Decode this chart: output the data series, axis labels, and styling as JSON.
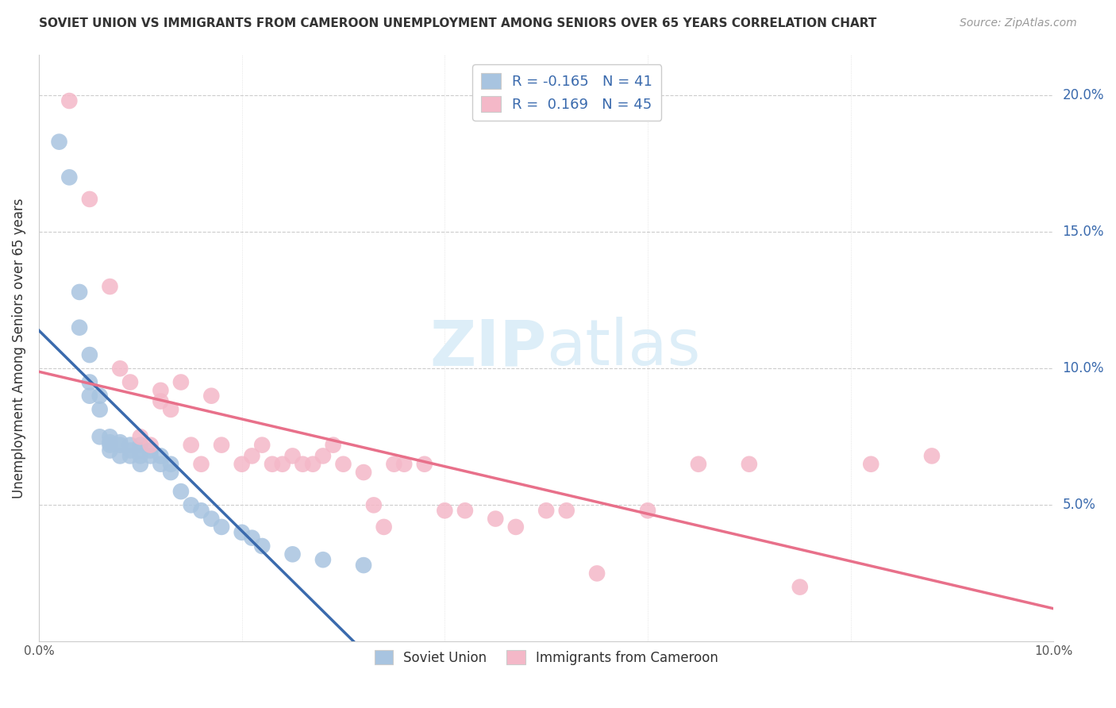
{
  "title": "SOVIET UNION VS IMMIGRANTS FROM CAMEROON UNEMPLOYMENT AMONG SENIORS OVER 65 YEARS CORRELATION CHART",
  "source": "Source: ZipAtlas.com",
  "ylabel": "Unemployment Among Seniors over 65 years",
  "legend_label1": "Soviet Union",
  "legend_label2": "Immigrants from Cameroon",
  "R1": "-0.165",
  "N1": "41",
  "R2": "0.169",
  "N2": "45",
  "color_soviet": "#a8c4e0",
  "color_cameroon": "#f4b8c8",
  "color_line_soviet": "#3a6aad",
  "color_line_cameroon": "#e8708a",
  "color_dashed": "#c0c8d8",
  "watermark_color": "#ddeef8",
  "xlim": [
    0.0,
    0.1
  ],
  "ylim": [
    0.0,
    0.215
  ],
  "soviet_x": [
    0.002,
    0.003,
    0.004,
    0.004,
    0.005,
    0.005,
    0.005,
    0.006,
    0.006,
    0.006,
    0.007,
    0.007,
    0.007,
    0.007,
    0.008,
    0.008,
    0.008,
    0.009,
    0.009,
    0.009,
    0.01,
    0.01,
    0.01,
    0.01,
    0.011,
    0.011,
    0.012,
    0.012,
    0.013,
    0.013,
    0.014,
    0.015,
    0.016,
    0.017,
    0.018,
    0.02,
    0.021,
    0.022,
    0.025,
    0.028,
    0.032
  ],
  "soviet_y": [
    0.183,
    0.17,
    0.128,
    0.115,
    0.105,
    0.095,
    0.09,
    0.09,
    0.085,
    0.075,
    0.075,
    0.073,
    0.072,
    0.07,
    0.073,
    0.072,
    0.068,
    0.072,
    0.07,
    0.068,
    0.072,
    0.07,
    0.068,
    0.065,
    0.07,
    0.068,
    0.068,
    0.065,
    0.065,
    0.062,
    0.055,
    0.05,
    0.048,
    0.045,
    0.042,
    0.04,
    0.038,
    0.035,
    0.032,
    0.03,
    0.028
  ],
  "cameroon_x": [
    0.003,
    0.005,
    0.007,
    0.008,
    0.009,
    0.01,
    0.011,
    0.012,
    0.012,
    0.013,
    0.014,
    0.015,
    0.016,
    0.017,
    0.018,
    0.02,
    0.021,
    0.022,
    0.023,
    0.024,
    0.025,
    0.026,
    0.027,
    0.028,
    0.029,
    0.03,
    0.032,
    0.033,
    0.034,
    0.035,
    0.036,
    0.038,
    0.04,
    0.042,
    0.045,
    0.047,
    0.05,
    0.052,
    0.055,
    0.06,
    0.065,
    0.07,
    0.075,
    0.082,
    0.088
  ],
  "cameroon_y": [
    0.198,
    0.162,
    0.13,
    0.1,
    0.095,
    0.075,
    0.072,
    0.092,
    0.088,
    0.085,
    0.095,
    0.072,
    0.065,
    0.09,
    0.072,
    0.065,
    0.068,
    0.072,
    0.065,
    0.065,
    0.068,
    0.065,
    0.065,
    0.068,
    0.072,
    0.065,
    0.062,
    0.05,
    0.042,
    0.065,
    0.065,
    0.065,
    0.048,
    0.048,
    0.045,
    0.042,
    0.048,
    0.048,
    0.025,
    0.048,
    0.065,
    0.065,
    0.02,
    0.065,
    0.068
  ]
}
